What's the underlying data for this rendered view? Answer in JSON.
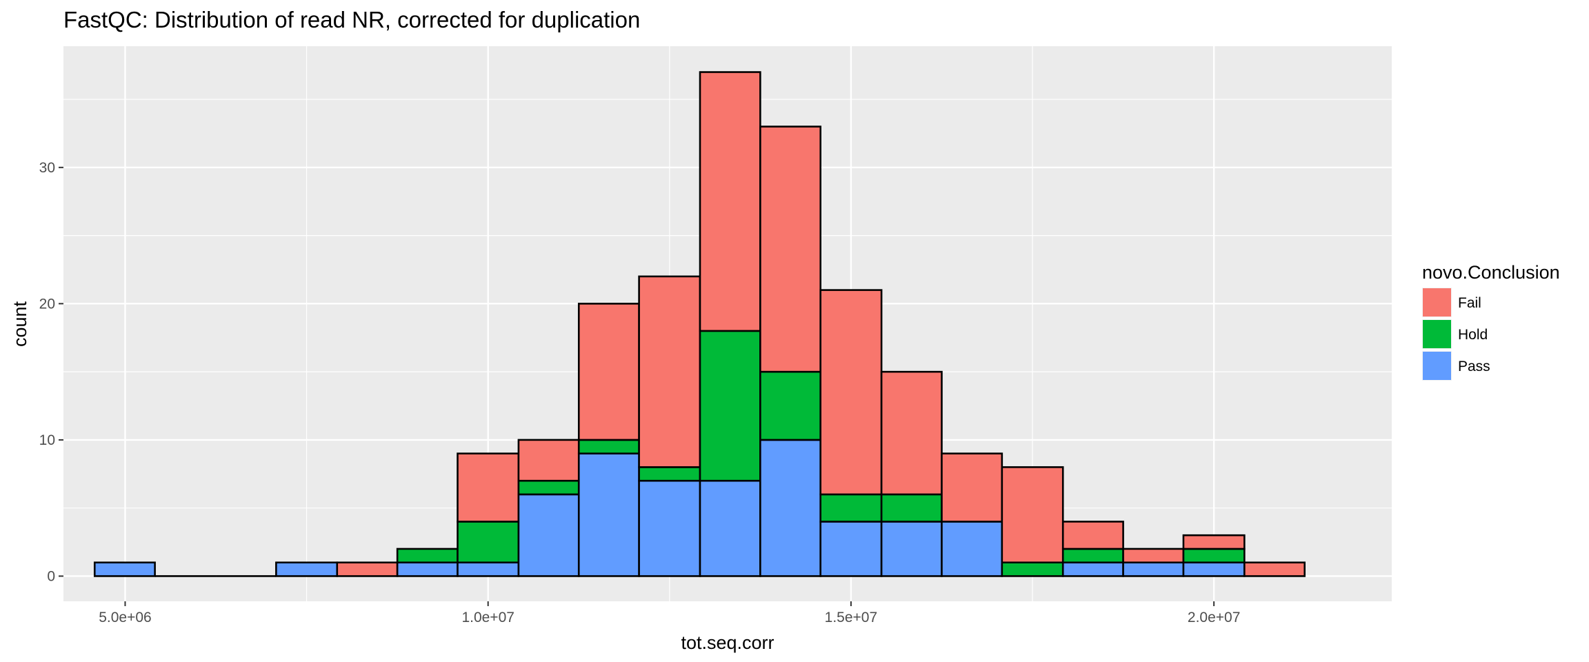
{
  "chart_data": {
    "type": "bar",
    "stacked": true,
    "title": "FastQC: Distribution of read NR, corrected for duplication",
    "xlabel": "tot.seq.corr",
    "ylabel": "count",
    "x_ticks": [
      {
        "value": 5000000,
        "label": "5.0e+06"
      },
      {
        "value": 10000000,
        "label": "1.0e+07"
      },
      {
        "value": 15000000,
        "label": "1.5e+07"
      },
      {
        "value": 20000000,
        "label": "2.0e+07"
      }
    ],
    "y_ticks": [
      {
        "value": 0,
        "label": "0"
      },
      {
        "value": 10,
        "label": "10"
      },
      {
        "value": 20,
        "label": "20"
      },
      {
        "value": 30,
        "label": "30"
      }
    ],
    "xlim": [
      4150000,
      22450000
    ],
    "ylim": [
      -1.85,
      38.9
    ],
    "grid": true,
    "legend": {
      "title": "novo.Conclusion",
      "position": "right"
    },
    "bins": [
      [
        4580000,
        5410000
      ],
      [
        5410000,
        6250000
      ],
      [
        6250000,
        7080000
      ],
      [
        7080000,
        7920000
      ],
      [
        7920000,
        8750000
      ],
      [
        8750000,
        9580000
      ],
      [
        9580000,
        10420000
      ],
      [
        10420000,
        11250000
      ],
      [
        11250000,
        12080000
      ],
      [
        12080000,
        12920000
      ],
      [
        12920000,
        13750000
      ],
      [
        13750000,
        14580000
      ],
      [
        14580000,
        15420000
      ],
      [
        15420000,
        16250000
      ],
      [
        16250000,
        17080000
      ],
      [
        17080000,
        17920000
      ],
      [
        17920000,
        18750000
      ],
      [
        18750000,
        19580000
      ],
      [
        19580000,
        20420000
      ],
      [
        20420000,
        21250000
      ]
    ],
    "series": [
      {
        "name": "Pass",
        "color": "#619CFF",
        "values": [
          1,
          0,
          0,
          1,
          0,
          1,
          1,
          6,
          9,
          7,
          7,
          10,
          4,
          4,
          4,
          0,
          1,
          1,
          1,
          0
        ]
      },
      {
        "name": "Hold",
        "color": "#00BA38",
        "values": [
          0,
          0,
          0,
          0,
          0,
          1,
          3,
          1,
          1,
          1,
          11,
          5,
          2,
          2,
          0,
          1,
          1,
          0,
          1,
          0
        ]
      },
      {
        "name": "Fail",
        "color": "#F8766D",
        "values": [
          0,
          0,
          0,
          0,
          1,
          0,
          5,
          3,
          10,
          14,
          19,
          18,
          15,
          9,
          5,
          7,
          2,
          1,
          1,
          1
        ]
      }
    ],
    "legend_order": [
      "Fail",
      "Hold",
      "Pass"
    ]
  }
}
